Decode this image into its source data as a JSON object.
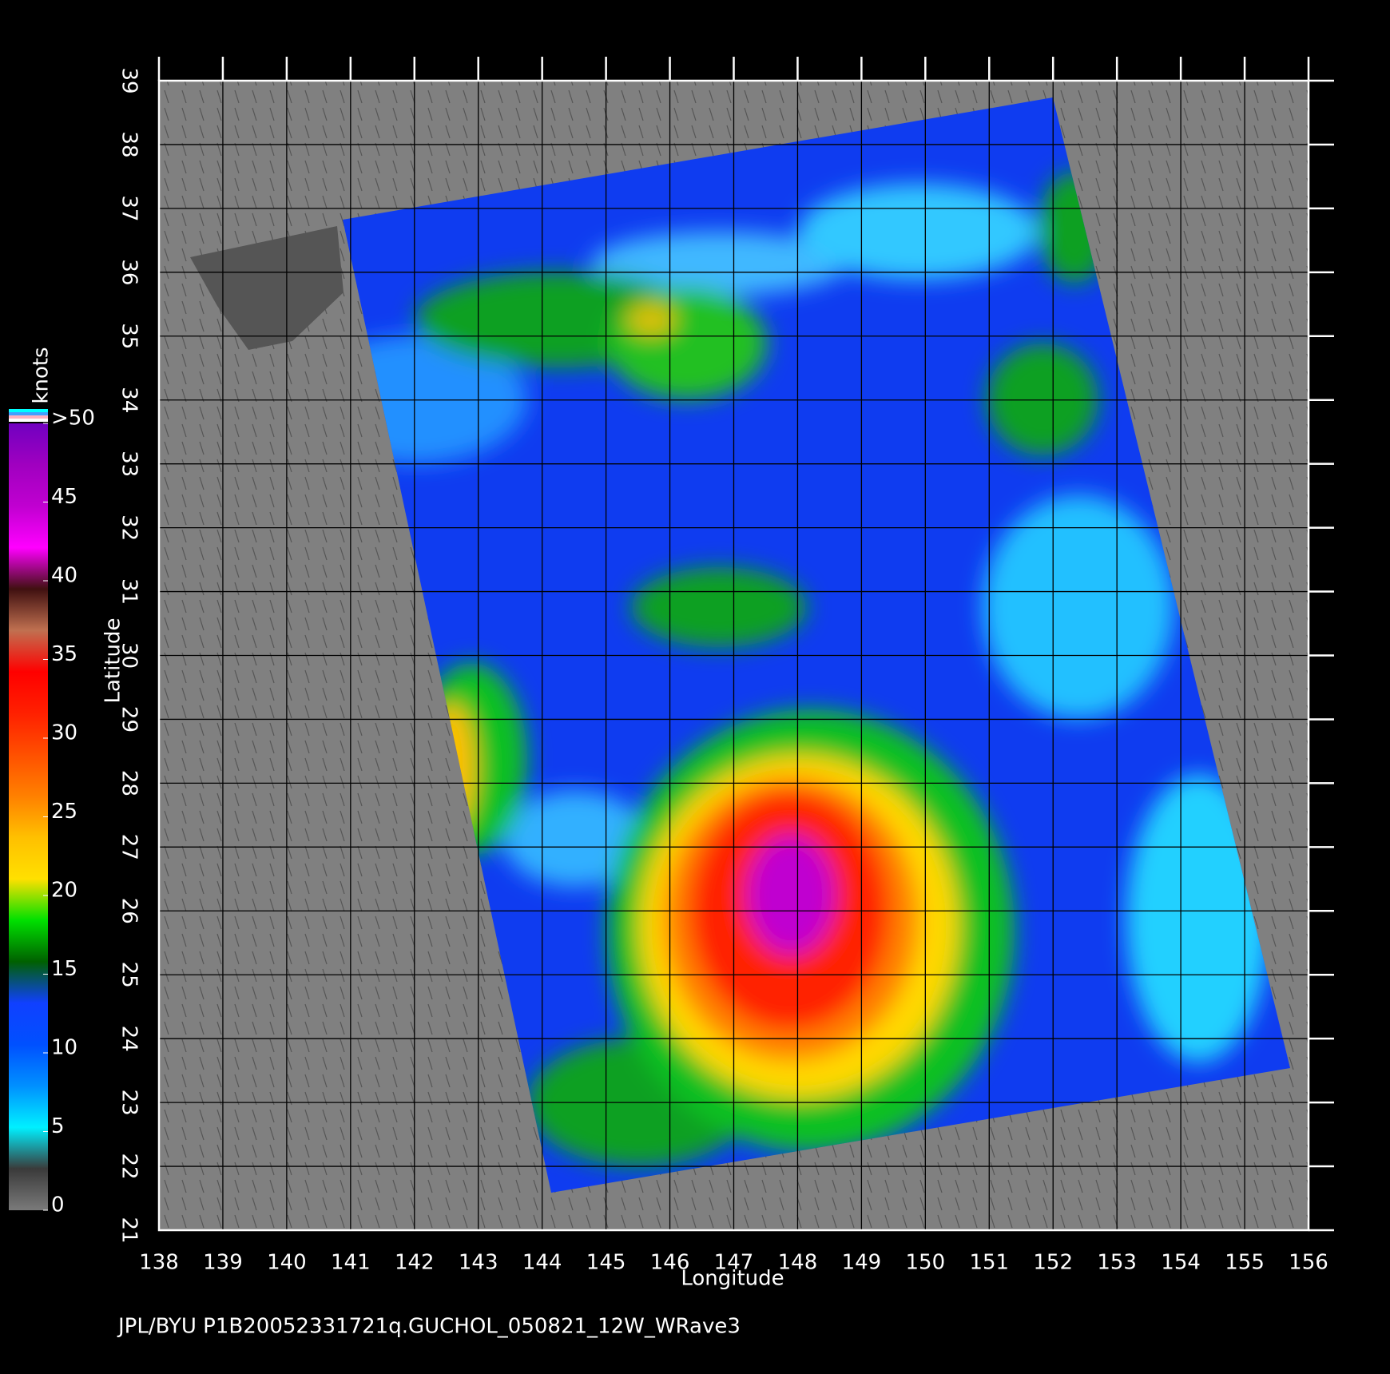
{
  "chart_data": {
    "type": "map",
    "xlabel": "Longitude",
    "ylabel": "Latitude",
    "xlim": [
      138,
      156
    ],
    "ylim": [
      21,
      39
    ],
    "xticks": [
      138,
      139,
      140,
      141,
      142,
      143,
      144,
      145,
      146,
      147,
      148,
      149,
      150,
      151,
      152,
      153,
      154,
      155,
      156
    ],
    "yticks": [
      21,
      22,
      23,
      24,
      25,
      26,
      27,
      28,
      29,
      30,
      31,
      32,
      33,
      34,
      35,
      36,
      37,
      38,
      39
    ],
    "grid": true,
    "colorbar": {
      "label": "knots",
      "lim": [
        0,
        50
      ],
      "ticks": [
        0,
        5,
        10,
        15,
        20,
        25,
        30,
        35,
        40,
        45,
        {
          "value": 50,
          "label": ">50"
        }
      ],
      "colors": [
        "#7a7a7a",
        "#3a3a3a",
        "#00f0ff",
        "#0090ff",
        "#0050ff",
        "#1040ff",
        "#006000",
        "#00e000",
        "#ffe000",
        "#ffc000",
        "#ff8000",
        "#ff5000",
        "#ff2000",
        "#ff0000",
        "#c07050",
        "#401010",
        "#ff00ff",
        "#c000d0",
        "#a000c0",
        "#7000c0"
      ]
    }
  },
  "caption": "JPL/BYU  P1B20052331721q.GUCHOL_050821_12W_WRave3"
}
